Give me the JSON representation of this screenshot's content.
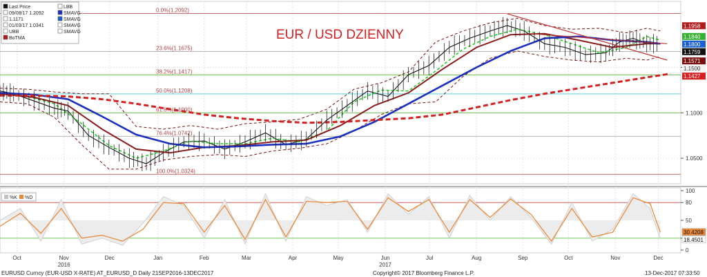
{
  "title": "EUR / USD DZIENNY",
  "colors": {
    "price": "#111111",
    "bollinger_band": "#7a1010",
    "sma_short": "#22cc22",
    "sma_mid": "#8b1a1a",
    "sma_long": "#1a2fbf",
    "sma_200": "#d42020",
    "trend": "#c03030",
    "stoch_k": "#d0d0d0",
    "stoch_d": "#e88a3a",
    "fib_line": "#b04040",
    "cyan": "#40c8d8",
    "green": "#5cba40"
  },
  "legend": [
    {
      "label": "Last Price",
      "icon": "candle-icon"
    },
    {
      "label": "09/08/17 1.2092",
      "icon": "high-marker-icon"
    },
    {
      "label": "1.1171",
      "icon": "close-marker-icon"
    },
    {
      "label": "01/03/17 1.0341",
      "icon": "low-marker-icon"
    },
    {
      "label": "UBB",
      "icon": "band-icon"
    },
    {
      "label": "BoTMA",
      "icon": "square-icon"
    },
    {
      "label": "LBB",
      "icon": "band-icon"
    },
    {
      "label": "SMAVG",
      "icon": "square-icon"
    },
    {
      "label": "SMAVG",
      "icon": "square-icon"
    },
    {
      "label": "SMAVG",
      "icon": "band-icon"
    },
    {
      "label": "SMAVG",
      "icon": "band-icon"
    }
  ],
  "lower_legend": [
    {
      "label": "%K",
      "color": "#c0c0c0"
    },
    {
      "label": "%D",
      "color": "#e88a3a"
    }
  ],
  "price_labels": [
    {
      "value": 1.1958,
      "text": "1.1958",
      "bg": "#b01c1c",
      "fg": "#ffffff"
    },
    {
      "value": 1.184,
      "text": "1.1840",
      "bg": "#36b030",
      "fg": "#ffffff"
    },
    {
      "value": 1.18,
      "text": "1.1800",
      "bg": "#1a5fcf",
      "fg": "#ffffff"
    },
    {
      "value": 1.1759,
      "text": "1.1759",
      "bg": "#111111",
      "fg": "#ffffff"
    },
    {
      "value": 1.1571,
      "text": "1.1571",
      "bg": "#7a1010",
      "fg": "#ffffff"
    },
    {
      "value": 1.15,
      "text": "1.1500",
      "bg": "#f5f5f5",
      "fg": "#333333"
    },
    {
      "value": 1.1427,
      "text": "1.1427",
      "bg": "#d42020",
      "fg": "#ffffff"
    }
  ],
  "osc_labels": [
    {
      "value": 30.4208,
      "text": "30.4208",
      "bg": "#e88a3a",
      "fg": "#111111"
    },
    {
      "value": 18.4501,
      "text": "18.4501",
      "bg": "#ffffff",
      "fg": "#111111"
    }
  ],
  "footer": {
    "left": "EURUSD Curncy (EUR-USD X-RATE) AT_EURUSD_D  Daily 21SEP2016-13DEC2017",
    "center": "Copyright© 2017 Bloomberg Finance L.P.",
    "right": "13-Dec-2017 07:33:50"
  },
  "chart_data": [
    {
      "type": "line",
      "title": "EUR / USD DZIENNY",
      "x_range": [
        "2016-09-21",
        "2017-12-13"
      ],
      "y_range": [
        1.025,
        1.215
      ],
      "y_ticks": [
        1.05,
        1.1,
        1.15
      ],
      "x_ticks": [
        "Oct",
        "Nov",
        "Dec",
        "Jan",
        "Feb",
        "Mar",
        "Apr",
        "May",
        "Jun",
        "Jul",
        "Aug",
        "Sep",
        "Oct",
        "Nov",
        "Dec"
      ],
      "x_tick_positions": [
        0.025,
        0.094,
        0.161,
        0.232,
        0.3,
        0.362,
        0.43,
        0.497,
        0.566,
        0.631,
        0.7,
        0.768,
        0.835,
        0.904,
        0.967
      ],
      "year_labels": [
        {
          "text": "2016",
          "pos": 0.094
        },
        {
          "text": "2017",
          "pos": 0.566
        }
      ],
      "grid": true,
      "fibonacci": [
        {
          "label": "0.0%(1.2092)",
          "value": 1.2092,
          "color": "#b04040"
        },
        {
          "label": "23.6%(1.1675)",
          "value": 1.1675,
          "color": "#999999"
        },
        {
          "label": "38.2%(1.1417)",
          "value": 1.1417,
          "color": "#5cba40"
        },
        {
          "label": "50.0%(1.1208)",
          "value": 1.1208,
          "color": "#40c8d8"
        },
        {
          "label": "61.8%(1.1000)",
          "value": 1.1,
          "color": "#5cba40"
        },
        {
          "label": "76.4%(1.0742)",
          "value": 1.0742,
          "color": "#999999"
        },
        {
          "label": "100.0%(1.0324)",
          "value": 1.0324,
          "color": "#b04040"
        }
      ],
      "series": [
        {
          "name": "Last Price",
          "role": "price",
          "x": [
            0,
            0.02,
            0.05,
            0.08,
            0.1,
            0.13,
            0.16,
            0.19,
            0.215,
            0.24,
            0.27,
            0.3,
            0.33,
            0.36,
            0.39,
            0.42,
            0.45,
            0.48,
            0.51,
            0.54,
            0.57,
            0.6,
            0.63,
            0.66,
            0.69,
            0.72,
            0.745,
            0.77,
            0.8,
            0.83,
            0.86,
            0.89,
            0.91,
            0.93,
            0.95,
            0.97
          ],
          "y": [
            1.124,
            1.121,
            1.113,
            1.105,
            1.102,
            1.075,
            1.062,
            1.05,
            1.044,
            1.056,
            1.068,
            1.069,
            1.06,
            1.068,
            1.078,
            1.065,
            1.071,
            1.092,
            1.108,
            1.124,
            1.118,
            1.142,
            1.152,
            1.172,
            1.182,
            1.19,
            1.196,
            1.19,
            1.176,
            1.172,
            1.164,
            1.166,
            1.178,
            1.182,
            1.176,
            1.176
          ]
        },
        {
          "name": "UBB",
          "role": "bb_upper",
          "x": [
            0,
            0.04,
            0.08,
            0.12,
            0.16,
            0.2,
            0.24,
            0.28,
            0.32,
            0.36,
            0.4,
            0.44,
            0.48,
            0.52,
            0.56,
            0.6,
            0.64,
            0.68,
            0.72,
            0.76,
            0.8,
            0.84,
            0.88,
            0.92,
            0.95,
            0.97
          ],
          "y": [
            1.127,
            1.126,
            1.123,
            1.121,
            1.121,
            1.085,
            1.082,
            1.086,
            1.082,
            1.088,
            1.09,
            1.093,
            1.104,
            1.126,
            1.133,
            1.145,
            1.178,
            1.19,
            1.199,
            1.204,
            1.196,
            1.192,
            1.193,
            1.188,
            1.193,
            1.19
          ]
        },
        {
          "name": "LBB",
          "role": "bb_lower",
          "x": [
            0,
            0.04,
            0.08,
            0.12,
            0.16,
            0.2,
            0.24,
            0.28,
            0.32,
            0.36,
            0.4,
            0.44,
            0.48,
            0.52,
            0.56,
            0.6,
            0.64,
            0.68,
            0.72,
            0.76,
            0.8,
            0.84,
            0.88,
            0.92,
            0.95,
            0.97
          ],
          "y": [
            1.112,
            1.11,
            1.095,
            1.065,
            1.038,
            1.038,
            1.048,
            1.052,
            1.054,
            1.052,
            1.058,
            1.061,
            1.066,
            1.08,
            1.098,
            1.11,
            1.112,
            1.14,
            1.16,
            1.168,
            1.162,
            1.158,
            1.156,
            1.16,
            1.158,
            1.162
          ]
        },
        {
          "name": "SMAVG",
          "role": "sma_short",
          "x": [
            0,
            0.04,
            0.08,
            0.12,
            0.16,
            0.2,
            0.24,
            0.28,
            0.32,
            0.36,
            0.4,
            0.44,
            0.48,
            0.52,
            0.56,
            0.6,
            0.64,
            0.68,
            0.72,
            0.76,
            0.8,
            0.84,
            0.88,
            0.92,
            0.95,
            0.97
          ],
          "y": [
            1.122,
            1.118,
            1.11,
            1.088,
            1.064,
            1.05,
            1.058,
            1.069,
            1.066,
            1.066,
            1.072,
            1.068,
            1.08,
            1.112,
            1.125,
            1.124,
            1.146,
            1.17,
            1.184,
            1.192,
            1.186,
            1.176,
            1.166,
            1.172,
            1.184,
            1.18
          ]
        },
        {
          "name": "SMAVG",
          "role": "sma_mid",
          "x": [
            0,
            0.05,
            0.1,
            0.15,
            0.2,
            0.25,
            0.3,
            0.35,
            0.4,
            0.45,
            0.5,
            0.55,
            0.6,
            0.65,
            0.7,
            0.75,
            0.8,
            0.85,
            0.9,
            0.95,
            0.97
          ],
          "y": [
            1.121,
            1.117,
            1.108,
            1.082,
            1.06,
            1.056,
            1.062,
            1.064,
            1.068,
            1.07,
            1.086,
            1.108,
            1.122,
            1.148,
            1.172,
            1.186,
            1.187,
            1.18,
            1.172,
            1.176,
            1.176
          ]
        },
        {
          "name": "SMAVG",
          "role": "sma_long",
          "x": [
            0,
            0.05,
            0.1,
            0.15,
            0.2,
            0.25,
            0.3,
            0.35,
            0.4,
            0.45,
            0.5,
            0.55,
            0.6,
            0.65,
            0.7,
            0.75,
            0.8,
            0.85,
            0.9,
            0.95,
            0.97
          ],
          "y": [
            1.122,
            1.12,
            1.115,
            1.096,
            1.076,
            1.066,
            1.062,
            1.063,
            1.065,
            1.066,
            1.074,
            1.09,
            1.11,
            1.13,
            1.15,
            1.168,
            1.182,
            1.184,
            1.18,
            1.178,
            1.176
          ]
        },
        {
          "name": "SMAVG",
          "role": "sma_200",
          "x": [
            0,
            0.05,
            0.1,
            0.15,
            0.2,
            0.25,
            0.3,
            0.35,
            0.4,
            0.45,
            0.5,
            0.55,
            0.6,
            0.65,
            0.7,
            0.75,
            0.8,
            0.85,
            0.9,
            0.95,
            0.985
          ],
          "y": [
            1.119,
            1.119,
            1.118,
            1.115,
            1.11,
            1.104,
            1.098,
            1.094,
            1.091,
            1.089,
            1.09,
            1.092,
            1.094,
            1.098,
            1.106,
            1.114,
            1.121,
            1.127,
            1.133,
            1.139,
            1.143
          ]
        },
        {
          "name": "trend-down",
          "role": "trend",
          "x": [
            0.745,
            0.98
          ],
          "y": [
            1.209,
            1.158
          ]
        },
        {
          "name": "trend-up",
          "role": "trend",
          "x": [
            0.78,
            0.98
          ],
          "y": [
            1.187,
            1.176
          ]
        }
      ]
    },
    {
      "type": "line",
      "title": "",
      "y_range": [
        0,
        100
      ],
      "y_ticks": [
        0,
        20,
        50,
        80,
        100
      ],
      "levels": [
        80,
        20
      ],
      "series": [
        {
          "name": "%K",
          "role": "stoch_k",
          "x": [
            0,
            0.03,
            0.06,
            0.09,
            0.12,
            0.15,
            0.18,
            0.21,
            0.24,
            0.27,
            0.3,
            0.33,
            0.36,
            0.39,
            0.42,
            0.45,
            0.48,
            0.51,
            0.54,
            0.57,
            0.6,
            0.63,
            0.66,
            0.69,
            0.72,
            0.75,
            0.78,
            0.81,
            0.84,
            0.87,
            0.9,
            0.93,
            0.955,
            0.97
          ],
          "y": [
            50,
            70,
            15,
            85,
            10,
            20,
            8,
            45,
            90,
            75,
            20,
            85,
            10,
            95,
            15,
            90,
            75,
            85,
            30,
            95,
            60,
            90,
            20,
            92,
            50,
            90,
            55,
            10,
            80,
            15,
            35,
            95,
            70,
            18
          ]
        },
        {
          "name": "%D",
          "role": "stoch_d",
          "x": [
            0,
            0.03,
            0.06,
            0.09,
            0.12,
            0.15,
            0.18,
            0.21,
            0.24,
            0.27,
            0.3,
            0.33,
            0.36,
            0.39,
            0.42,
            0.45,
            0.48,
            0.51,
            0.54,
            0.57,
            0.6,
            0.63,
            0.66,
            0.69,
            0.72,
            0.75,
            0.78,
            0.81,
            0.84,
            0.87,
            0.9,
            0.93,
            0.955,
            0.97
          ],
          "y": [
            40,
            62,
            28,
            70,
            20,
            25,
            15,
            35,
            80,
            78,
            30,
            75,
            18,
            85,
            22,
            82,
            80,
            82,
            35,
            88,
            65,
            85,
            30,
            85,
            55,
            86,
            60,
            15,
            70,
            22,
            30,
            88,
            78,
            30
          ]
        }
      ]
    }
  ]
}
